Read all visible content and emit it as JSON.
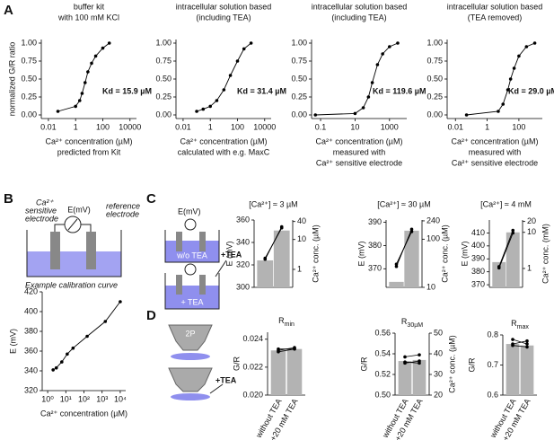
{
  "panel_labels": [
    "A",
    "B",
    "C",
    "D"
  ],
  "diagrams": {
    "B": {
      "sensitive_electrode": [
        "Ca²⁺",
        "sensitive",
        "electrode"
      ],
      "meter": "E(mV)",
      "reference_electrode": [
        "reference",
        "electrode"
      ]
    },
    "C": {
      "meter": "E(mV)",
      "without": "w/o TEA",
      "add": "+TEA",
      "with": "+ TEA"
    },
    "D": {
      "microscope": "2P",
      "add": "+TEA"
    }
  },
  "chart_data": [
    {
      "type": "scatter",
      "title": [
        "buffer kit",
        "with 100 mM KCl"
      ],
      "xlabel": [
        "Ca²⁺ concentration (µM)",
        "predicted from Kit"
      ],
      "ylabel": "normalized G/R ratio",
      "annotation": "Kd = 15.9 µM",
      "x": [
        0.05,
        1,
        2,
        3,
        5,
        8,
        15,
        30,
        100,
        300
      ],
      "values": [
        0.05,
        0.12,
        0.2,
        0.3,
        0.45,
        0.6,
        0.72,
        0.82,
        0.93,
        1.0
      ],
      "color": "#000000",
      "xlog": true,
      "xlim": [
        0.003,
        30000
      ],
      "xticks": [
        0.01,
        1,
        100,
        10000
      ],
      "ylim": [
        -0.05,
        1.05
      ],
      "yticks": [
        {
          "value": 0,
          "label": "0.00"
        },
        {
          "value": 0.25,
          "label": "0.25"
        },
        {
          "value": 0.5,
          "label": "0.50"
        },
        {
          "value": 0.75,
          "label": "0.75"
        },
        {
          "value": 1,
          "label": "1.00"
        }
      ]
    },
    {
      "type": "scatter",
      "title": [
        "intracellular solution based",
        "(including TEA)"
      ],
      "xlabel": [
        "Ca²⁺ concentration (µM)",
        "calculated with e.g. MaxC"
      ],
      "annotation": "Kd = 31.4 µM",
      "x": [
        0.1,
        0.3,
        1,
        3,
        10,
        30,
        100,
        300,
        1000
      ],
      "values": [
        0.05,
        0.08,
        0.12,
        0.2,
        0.35,
        0.55,
        0.75,
        0.92,
        1.0
      ],
      "color": "#000000",
      "xlog": true,
      "xlim": [
        0.003,
        30000
      ],
      "xticks": [
        0.01,
        1,
        100,
        10000
      ],
      "ylim": [
        -0.05,
        1.05
      ],
      "yticks": [
        {
          "value": 0,
          "label": "0.00"
        },
        {
          "value": 0.25,
          "label": "0.25"
        },
        {
          "value": 0.5,
          "label": "0.50"
        },
        {
          "value": 0.75,
          "label": "0.75"
        },
        {
          "value": 1,
          "label": "1.00"
        }
      ]
    },
    {
      "type": "scatter",
      "title": [
        "intracellular solution based",
        "(including TEA)"
      ],
      "xlabel": [
        "Ca²⁺ concentration (µM)",
        "measured with",
        "Ca²⁺ sensitive electrode"
      ],
      "annotation": "Kd = 119.6 µM",
      "x": [
        0.05,
        10,
        30,
        60,
        100,
        200,
        400,
        1000,
        3000
      ],
      "values": [
        0.0,
        0.02,
        0.1,
        0.25,
        0.45,
        0.7,
        0.85,
        0.95,
        1.0
      ],
      "color": "#000000",
      "xlog": true,
      "xlim": [
        0.03,
        10000
      ],
      "xticks": [
        0.1,
        10,
        1000
      ],
      "ylim": [
        -0.05,
        1.05
      ],
      "yticks": [
        {
          "value": 0,
          "label": "0.00"
        },
        {
          "value": 0.25,
          "label": "0.25"
        },
        {
          "value": 0.5,
          "label": "0.50"
        },
        {
          "value": 0.75,
          "label": "0.75"
        },
        {
          "value": 1,
          "label": "1.00"
        }
      ]
    },
    {
      "type": "scatter",
      "title": [
        "intracellular solution based",
        "(TEA removed)"
      ],
      "xlabel": [
        "Ca²⁺ concentration (µM)",
        "measured with",
        "Ca²⁺ sensitive electrode"
      ],
      "annotation": "Kd = 29.0 µM",
      "x": [
        0.05,
        5,
        10,
        20,
        30,
        50,
        100,
        300,
        1000
      ],
      "values": [
        0.0,
        0.05,
        0.15,
        0.35,
        0.5,
        0.65,
        0.82,
        0.95,
        1.0
      ],
      "color": "#000000",
      "xlog": true,
      "xlim": [
        0.003,
        3000
      ],
      "xticks": [
        0.01,
        1,
        100
      ],
      "ylim": [
        -0.05,
        1.05
      ],
      "yticks": [
        {
          "value": 0,
          "label": "0.00"
        },
        {
          "value": 0.25,
          "label": "0.25"
        },
        {
          "value": 0.5,
          "label": "0.50"
        },
        {
          "value": 0.75,
          "label": "0.75"
        },
        {
          "value": 1,
          "label": "1.00"
        }
      ]
    },
    {
      "type": "scatter",
      "title": "Example calibration curve",
      "xlabel": [
        "Ca²⁺ concentration (µM)"
      ],
      "ylabel": "E (mV)",
      "x": [
        2,
        3,
        6,
        12,
        25,
        150,
        1500,
        10000
      ],
      "values": [
        341,
        343,
        349,
        357,
        363,
        375,
        390,
        410
      ],
      "color": "#000000",
      "xlog": true,
      "xlim": [
        0.5,
        20000
      ],
      "xticks": [
        {
          "value": 1,
          "label": "10⁰"
        },
        {
          "value": 10,
          "label": "10¹"
        },
        {
          "value": 100,
          "label": "10²"
        },
        {
          "value": 1000,
          "label": "10³"
        },
        {
          "value": 10000,
          "label": "10⁴"
        }
      ],
      "ylim": [
        320,
        420
      ],
      "yticks": [
        320,
        340,
        360,
        380,
        400,
        420
      ]
    },
    {
      "type": "combo",
      "title": "[Ca²⁺] ≈ 3 µM",
      "ylabel": "E (mV)",
      "y2label": "Ca²⁺ conc. (µM)",
      "ylim": [
        300,
        360
      ],
      "yticks": [
        300,
        320,
        340,
        360
      ],
      "y2log": true,
      "y2lim": [
        0.25,
        45
      ],
      "y2ticks": [
        1,
        10,
        40
      ],
      "series": [
        {
          "type": "bar",
          "axis": "y2",
          "color": "#b3b3b3",
          "values": [
            2,
            20
          ]
        },
        {
          "type": "line",
          "color": "#000000",
          "values": [
            325,
            354
          ]
        },
        {
          "type": "line",
          "color": "#000000",
          "values": [
            326,
            353
          ]
        }
      ]
    },
    {
      "type": "combo",
      "title": "[Ca²⁺] ≈ 30 µM",
      "ylabel": "E (mV)",
      "y2label": "Ca²⁺ conc. (µM)",
      "ylim": [
        362,
        391
      ],
      "yticks": [
        370,
        380,
        390
      ],
      "y2log": true,
      "y2lim": [
        10,
        250
      ],
      "y2ticks": [
        10,
        100,
        240
      ],
      "series": [
        {
          "type": "bar",
          "axis": "y2",
          "color": "#b3b3b3",
          "values": [
            13,
            150
          ]
        },
        {
          "type": "line",
          "color": "#000000",
          "values": [
            371,
            387
          ]
        },
        {
          "type": "line",
          "color": "#000000",
          "values": [
            372,
            386
          ]
        }
      ]
    },
    {
      "type": "combo",
      "title": "[Ca²⁺] ≈ 4 mM",
      "ylabel": "E (mV)",
      "y2label": "Ca²⁺ conc. (mM)",
      "ylim": [
        368,
        420
      ],
      "yticks": [
        370,
        380,
        390,
        400,
        410
      ],
      "y2log": true,
      "y2lim": [
        0.3,
        22
      ],
      "y2ticks": [
        1,
        10,
        20
      ],
      "series": [
        {
          "type": "bar",
          "axis": "y2",
          "color": "#b3b3b3",
          "values": [
            1.5,
            10
          ]
        },
        {
          "type": "line",
          "color": "#000000",
          "values": [
            383,
            410
          ]
        },
        {
          "type": "line",
          "color": "#000000",
          "values": [
            384,
            412
          ]
        }
      ]
    },
    {
      "type": "bar",
      "title": {
        "main": "R",
        "sub": "min"
      },
      "ylabel": "G/R",
      "categories": [
        "without TEA",
        "+20 mM TEA"
      ],
      "values": [
        0.0232,
        0.0233
      ],
      "color": "#b3b3b3",
      "ylim": [
        0.02,
        0.0245
      ],
      "yticks": [
        {
          "value": 0.02,
          "label": "0.020"
        },
        {
          "value": 0.022,
          "label": "0.022"
        },
        {
          "value": 0.024,
          "label": "0.024"
        }
      ],
      "series": [
        {
          "values": [
            0.0233,
            0.0233
          ]
        },
        {
          "values": [
            0.0232,
            0.0234
          ]
        },
        {
          "values": [
            0.0231,
            0.0233
          ]
        }
      ]
    },
    {
      "type": "bar",
      "title": {
        "main": "R",
        "sub": "30µM"
      },
      "ylabel": "G/R",
      "y2label": "Ca²⁺ conc. (µM)",
      "categories": [
        "without TEA",
        "+20 mM TEA"
      ],
      "values": [
        0.533,
        0.534
      ],
      "color": "#b3b3b3",
      "ylim": [
        0.5,
        0.56
      ],
      "yticks": [
        {
          "value": 0.5,
          "label": "0.50"
        },
        0.52,
        0.54,
        0.56
      ],
      "y2lim": [
        20,
        50
      ],
      "y2ticks": [
        20,
        30,
        40,
        50
      ],
      "series": [
        {
          "values": [
            0.537,
            0.539
          ]
        },
        {
          "values": [
            0.531,
            0.533
          ]
        },
        {
          "values": [
            0.532,
            0.531
          ]
        }
      ]
    },
    {
      "type": "bar",
      "title": {
        "main": "R",
        "sub": "max"
      },
      "ylabel": "G/R",
      "categories": [
        "without TEA",
        "+20 mM TEA"
      ],
      "values": [
        0.77,
        0.765
      ],
      "color": "#b3b3b3",
      "ylim": [
        0.6,
        0.8
      ],
      "yticks": [
        0.6,
        0.7,
        0.8
      ],
      "series": [
        {
          "values": [
            0.785,
            0.77
          ]
        },
        {
          "values": [
            0.77,
            0.78
          ]
        },
        {
          "values": [
            0.765,
            0.76
          ]
        }
      ]
    }
  ]
}
